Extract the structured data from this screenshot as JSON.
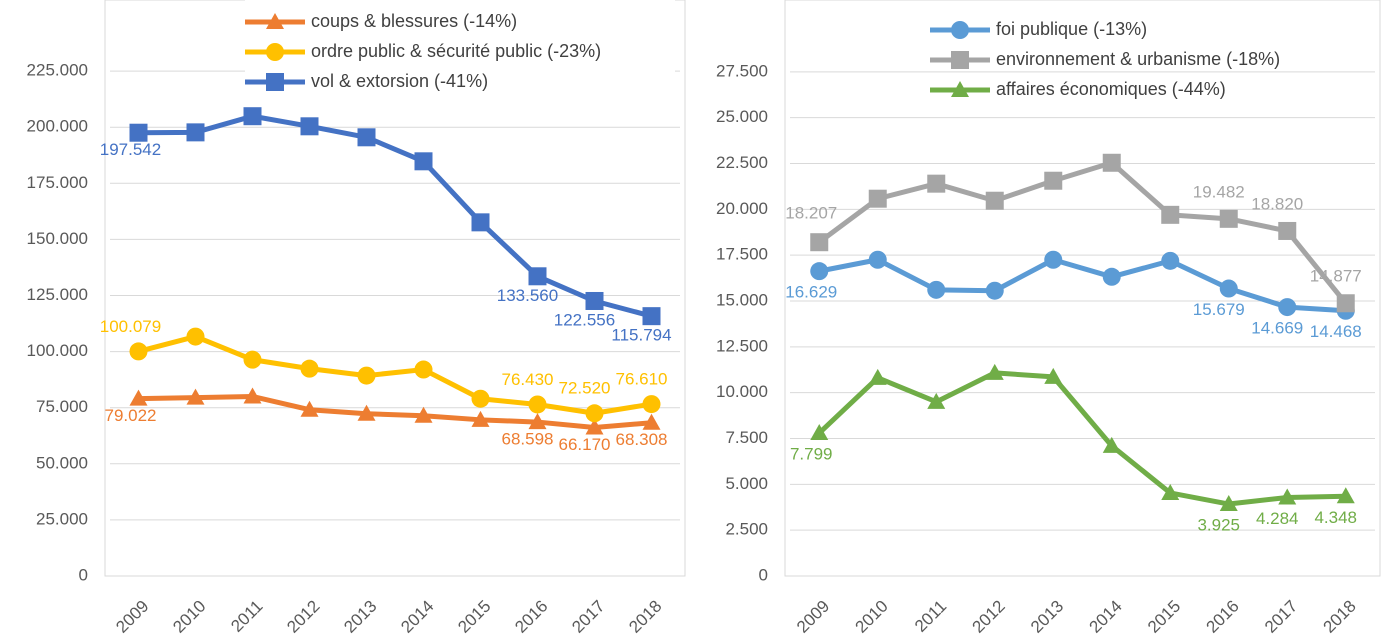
{
  "chart_data": [
    {
      "type": "line",
      "categories": [
        "2009",
        "2010",
        "2011",
        "2012",
        "2013",
        "2014",
        "2015",
        "2016",
        "2017",
        "2018"
      ],
      "ylim": [
        0,
        250000
      ],
      "yticks": [
        0,
        {
          "value": 25000,
          "label": "25.000"
        },
        {
          "value": 50000,
          "label": "50.000"
        },
        {
          "value": 75000,
          "label": "75.000"
        },
        {
          "value": 100000,
          "label": "100.000"
        },
        {
          "value": 125000,
          "label": "125.000"
        },
        {
          "value": 150000,
          "label": "150.000"
        },
        {
          "value": 175000,
          "label": "175.000"
        },
        {
          "value": 200000,
          "label": "200.000"
        },
        {
          "value": 225000,
          "label": "225.000"
        }
      ],
      "grid": true,
      "legend": "top",
      "series": [
        {
          "name": "coups & blessures (-14%)",
          "color": "#ed7d31",
          "marker": "triangle",
          "values": [
            79022,
            79500,
            80000,
            74100,
            72300,
            71400,
            69600,
            68598,
            66170,
            68308
          ],
          "value_labels": [
            "79.022",
            null,
            null,
            null,
            null,
            null,
            null,
            "68.598",
            "66.170",
            "68.308"
          ]
        },
        {
          "name": "ordre public & sécurité public (-23%)",
          "color": "#ffc000",
          "marker": "circle",
          "values": [
            100079,
            106700,
            96400,
            92400,
            89300,
            92000,
            79000,
            76430,
            72520,
            76610
          ],
          "value_labels": [
            "100.079",
            null,
            null,
            null,
            null,
            null,
            null,
            "76.430",
            "72.520",
            "76.610"
          ]
        },
        {
          "name": "vol & extorsion (-41%)",
          "color": "#4472c4",
          "marker": "square",
          "values": [
            197542,
            197700,
            204900,
            200400,
            195500,
            184800,
            157600,
            133560,
            122556,
            115794
          ],
          "value_labels": [
            "197.542",
            null,
            null,
            null,
            null,
            null,
            null,
            "133.560",
            "122.556",
            "115.794"
          ]
        }
      ]
    },
    {
      "type": "line",
      "categories": [
        "2009",
        "2010",
        "2011",
        "2012",
        "2013",
        "2014",
        "2015",
        "2016",
        "2017",
        "2018"
      ],
      "ylim": [
        0,
        30000
      ],
      "yticks": [
        0,
        {
          "value": 2500,
          "label": "2.500"
        },
        {
          "value": 5000,
          "label": "5.000"
        },
        {
          "value": 7500,
          "label": "7.500"
        },
        {
          "value": 10000,
          "label": "10.000"
        },
        {
          "value": 12500,
          "label": "12.500"
        },
        {
          "value": 15000,
          "label": "15.000"
        },
        {
          "value": 17500,
          "label": "17.500"
        },
        {
          "value": 20000,
          "label": "20.000"
        },
        {
          "value": 22500,
          "label": "22.500"
        },
        {
          "value": 25000,
          "label": "25.000"
        },
        {
          "value": 27500,
          "label": "27.500"
        }
      ],
      "grid": true,
      "legend": "top",
      "series": [
        {
          "name": "foi publique (-13%)",
          "color": "#5b9bd5",
          "marker": "circle",
          "values": [
            16629,
            17250,
            15610,
            15560,
            17250,
            16320,
            17190,
            15679,
            14669,
            14468
          ],
          "value_labels": [
            "16.629",
            null,
            null,
            null,
            null,
            null,
            null,
            "15.679",
            "14.669",
            "14.468"
          ]
        },
        {
          "name": "environnement & urbanisme (-18%)",
          "color": "#a5a5a5",
          "marker": "square",
          "values": [
            18207,
            20580,
            21400,
            20470,
            21560,
            22540,
            19700,
            19482,
            18820,
            14877
          ],
          "value_labels": [
            "18.207",
            null,
            null,
            null,
            null,
            null,
            null,
            "19.482",
            "18.820",
            "14.877"
          ]
        },
        {
          "name": "affaires économiques (-44%)",
          "color": "#70ad47",
          "marker": "triangle",
          "values": [
            7799,
            10810,
            9500,
            11080,
            10860,
            7100,
            4530,
            3925,
            4284,
            4348
          ],
          "value_labels": [
            "7.799",
            null,
            null,
            null,
            null,
            null,
            null,
            "3.925",
            "4.284",
            "4.348"
          ]
        }
      ]
    }
  ]
}
